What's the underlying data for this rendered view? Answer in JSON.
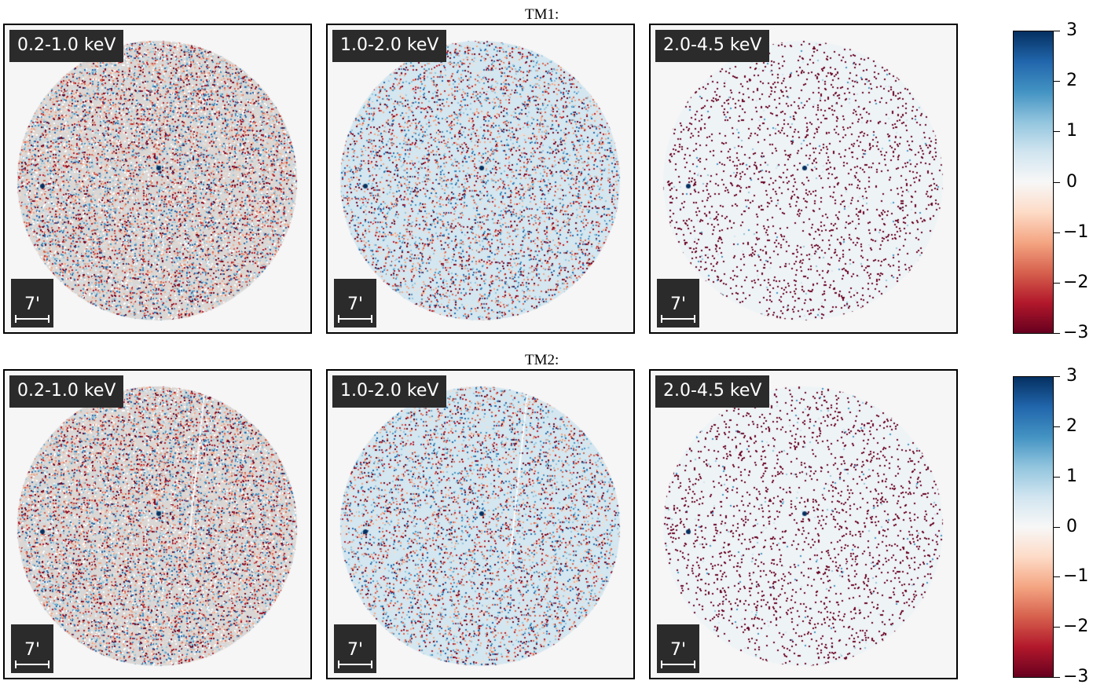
{
  "rows": [
    {
      "title": "TM1:",
      "panels": [
        {
          "band": "0.2-1.0 keV",
          "scale": "7'"
        },
        {
          "band": "1.0-2.0 keV",
          "scale": "7'"
        },
        {
          "band": "2.0-4.5 keV",
          "scale": "7'"
        }
      ]
    },
    {
      "title": "TM2:",
      "panels": [
        {
          "band": "0.2-1.0 keV",
          "scale": "7'"
        },
        {
          "band": "1.0-2.0 keV",
          "scale": "7'"
        },
        {
          "band": "2.0-4.5 keV",
          "scale": "7'"
        }
      ]
    }
  ],
  "colorbar": {
    "ticks": [
      "3",
      "2",
      "1",
      "0",
      "−1",
      "−2",
      "−3"
    ],
    "colormap": "RdBu",
    "colors": [
      "#67001f",
      "#b2182b",
      "#d6604d",
      "#f4a582",
      "#fddbc7",
      "#f7f7f7",
      "#d1e5f0",
      "#92c5de",
      "#4393c3",
      "#2166ac",
      "#053061"
    ]
  },
  "colors": {
    "panel_background": "#f6f6f6",
    "label_background": "#2b2b2b",
    "label_text": "#ffffff"
  }
}
